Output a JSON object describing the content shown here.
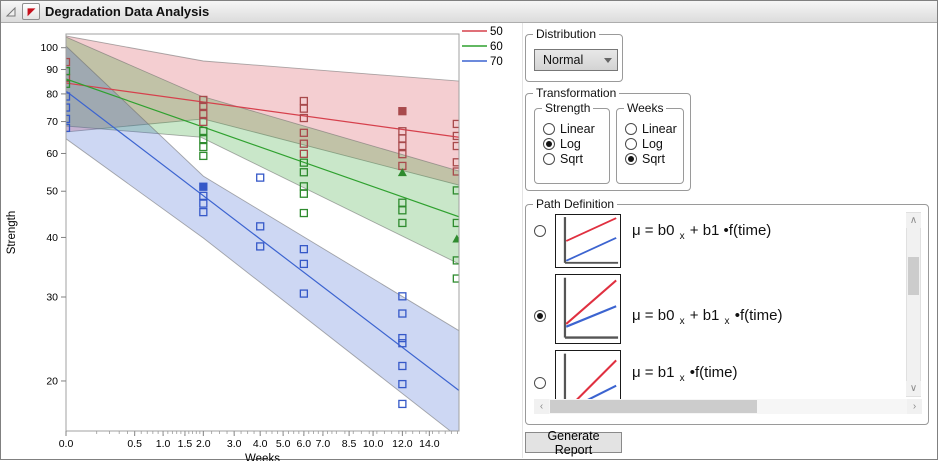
{
  "window": {
    "title": "Degradation Data Analysis"
  },
  "icons": {
    "combo_chevron": "chevron-down",
    "scroll_up": "∧",
    "scroll_down": "∨",
    "scroll_left": "‹",
    "scroll_right": "›"
  },
  "chart_data": {
    "type": "scatter",
    "title": "",
    "xlabel": "Weeks",
    "ylabel": "Strength",
    "x_scale": "sqrt",
    "y_scale": "log",
    "x_max": 16.38,
    "xlim": [
      0,
      16.38
    ],
    "ylim": [
      15.7,
      107
    ],
    "grid": false,
    "legend_position": "top-right-outside",
    "x_ticks": [
      0,
      0.5,
      1,
      1.5,
      2,
      3,
      4,
      5,
      6,
      7,
      8.5,
      10,
      12,
      14
    ],
    "x_minor_ranges": [
      [
        0.1,
        1.9,
        0.1
      ],
      [
        2.25,
        7.75,
        0.25
      ],
      [
        8.25,
        16.25,
        0.5
      ]
    ],
    "y_ticks": [
      100,
      90,
      80,
      70,
      60,
      50,
      40,
      30,
      20
    ],
    "series": [
      {
        "name": "50",
        "line_color": "#d6404c",
        "marker_color": "#a84a4c",
        "line": [
          [
            0,
            84.3
          ],
          [
            16.38,
            64.9
          ]
        ],
        "band": [
          [
            0,
            105.8
          ],
          [
            2,
            93.8
          ],
          [
            16.38,
            85.1
          ],
          [
            16.38,
            51.5
          ],
          [
            2,
            70.9
          ],
          [
            0,
            66.6
          ]
        ],
        "points": [
          [
            0,
            93.3
          ],
          [
            0,
            86.4
          ],
          [
            2,
            77.7
          ],
          [
            2,
            75.5
          ],
          [
            2,
            72.6
          ],
          [
            2,
            69.9
          ],
          [
            6,
            77.3
          ],
          [
            6,
            74.5
          ],
          [
            6,
            71.2
          ],
          [
            6,
            66.3
          ],
          [
            6,
            62.9
          ],
          [
            6,
            59.9
          ],
          [
            12,
            66.8
          ],
          [
            12,
            64.5
          ],
          [
            12,
            62.2
          ],
          [
            12,
            59.8
          ],
          [
            12,
            56.5
          ],
          [
            16.2,
            69.2
          ],
          [
            16.2,
            65.3
          ],
          [
            16.2,
            62.2
          ],
          [
            16.2,
            57.5
          ],
          [
            16.2,
            55.0
          ]
        ],
        "filled_points": [
          [
            12,
            73.6
          ]
        ],
        "triangle_points": []
      },
      {
        "name": "60",
        "line_color": "#2fa12f",
        "marker_color": "#2e8b2e",
        "line": [
          [
            0,
            86.0
          ],
          [
            16.38,
            44.2
          ]
        ],
        "band": [
          [
            0,
            105.3
          ],
          [
            1.93,
            79.2
          ],
          [
            16.38,
            55.1
          ],
          [
            16.38,
            35.2
          ],
          [
            1.93,
            64.9
          ],
          [
            0,
            68.5
          ]
        ],
        "points": [
          [
            0,
            89.3
          ],
          [
            0,
            84.0
          ],
          [
            2,
            66.9
          ],
          [
            2,
            64.3
          ],
          [
            2,
            61.9
          ],
          [
            2,
            59.3
          ],
          [
            6,
            57.4
          ],
          [
            6,
            54.8
          ],
          [
            6,
            51.2
          ],
          [
            6,
            49.4
          ],
          [
            6,
            45.0
          ],
          [
            12,
            47.3
          ],
          [
            12,
            45.6
          ],
          [
            12,
            42.9
          ],
          [
            16.2,
            50.2
          ],
          [
            16.2,
            42.9
          ],
          [
            16.2,
            35.8
          ],
          [
            16.2,
            32.8
          ]
        ],
        "filled_points": [],
        "triangle_points": [
          [
            12,
            54.7
          ],
          [
            16.2,
            39.7
          ]
        ]
      },
      {
        "name": "70",
        "line_color": "#3c64d0",
        "marker_color": "#3558c8",
        "line": [
          [
            0,
            81.1
          ],
          [
            16.38,
            19.1
          ]
        ],
        "band": [
          [
            0,
            100.8
          ],
          [
            2,
            53.8
          ],
          [
            16.38,
            25.5
          ],
          [
            16.38,
            15.2
          ],
          [
            2,
            39.9
          ],
          [
            0,
            64.4
          ]
        ],
        "points": [
          [
            0,
            79.0
          ],
          [
            0,
            74.9
          ],
          [
            0,
            70.9
          ],
          [
            0,
            67.9
          ],
          [
            2,
            48.9
          ],
          [
            2,
            47.1
          ],
          [
            2,
            45.2
          ],
          [
            4,
            53.4
          ],
          [
            4,
            42.2
          ],
          [
            4,
            38.3
          ],
          [
            6,
            37.8
          ],
          [
            6,
            35.2
          ],
          [
            6,
            30.5
          ],
          [
            12,
            30.1
          ],
          [
            12,
            27.7
          ],
          [
            12,
            24.6
          ],
          [
            12,
            24.0
          ],
          [
            12,
            21.5
          ],
          [
            12,
            19.7
          ],
          [
            12,
            17.9
          ]
        ],
        "filled_points": [
          [
            2,
            51.1
          ]
        ],
        "triangle_points": []
      }
    ]
  },
  "controls": {
    "distribution": {
      "label": "Distribution",
      "value": "Normal"
    },
    "transformation": {
      "label": "Transformation",
      "strength": {
        "label": "Strength",
        "options": [
          "Linear",
          "Log",
          "Sqrt"
        ],
        "selected": "Log"
      },
      "weeks": {
        "label": "Weeks",
        "options": [
          "Linear",
          "Log",
          "Sqrt"
        ],
        "selected": "Sqrt"
      }
    },
    "path_definition": {
      "label": "Path Definition",
      "options": [
        {
          "selected": false,
          "formula": [
            [
              "t",
              "μ = b0 "
            ],
            [
              "s",
              "x"
            ],
            [
              "t",
              " + b1 •f(time)"
            ]
          ],
          "thumb": {
            "red": [
              [
                16,
                50
              ],
              [
                94,
                6
              ]
            ],
            "blue": [
              [
                16,
                88
              ],
              [
                94,
                44
              ]
            ]
          }
        },
        {
          "selected": true,
          "formula": [
            [
              "t",
              "μ = b0 "
            ],
            [
              "s",
              "x"
            ],
            [
              "t",
              " + b1 "
            ],
            [
              "s",
              "x"
            ],
            [
              "t",
              " •f(time)"
            ]
          ],
          "thumb": {
            "red": [
              [
                16,
                72
              ],
              [
                94,
                8
              ]
            ],
            "blue": [
              [
                16,
                76
              ],
              [
                94,
                46
              ]
            ]
          }
        },
        {
          "selected": false,
          "formula": [
            [
              "t",
              "μ = b1 "
            ],
            [
              "s",
              "x"
            ],
            [
              "t",
              " •f(time)"
            ]
          ],
          "thumb": {
            "red": [
              [
                15,
                90
              ],
              [
                94,
                14
              ]
            ],
            "blue": [
              [
                15,
                90
              ],
              [
                94,
                52
              ]
            ]
          }
        }
      ]
    },
    "generate_report": "Generate Report"
  }
}
